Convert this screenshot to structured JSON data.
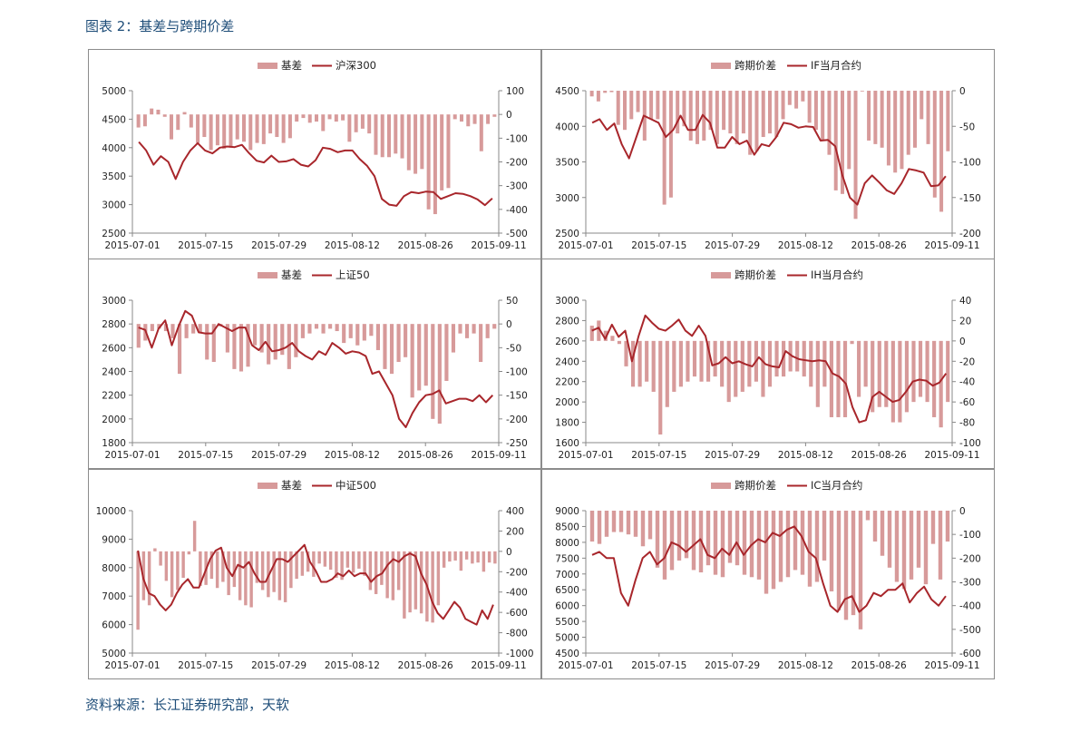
{
  "page": {
    "title": "图表 2：基差与跨期价差",
    "source": "资料来源：长江证券研究部，天软"
  },
  "colors": {
    "bar": "#d79a9a",
    "line": "#a8262b",
    "axis": "#888888"
  },
  "x_ticks": [
    "2015-07-01",
    "2015-07-15",
    "2015-07-29",
    "2015-08-12",
    "2015-08-26",
    "2015-09-11"
  ],
  "chart_data": [
    {
      "type": "bar+line",
      "legend": {
        "bar": "基差",
        "line": "沪深300"
      },
      "y_left": {
        "min": 2500,
        "max": 5000,
        "ticks": [
          2500,
          3000,
          3500,
          4000,
          4500,
          5000
        ]
      },
      "y_right": {
        "min": -500,
        "max": 100,
        "ticks": [
          -500,
          -400,
          -300,
          -200,
          -100,
          0,
          100
        ]
      },
      "bars": [
        -55,
        -50,
        25,
        20,
        -10,
        -105,
        -65,
        10,
        -55,
        -120,
        -95,
        -150,
        -130,
        -145,
        -140,
        -105,
        -115,
        -150,
        -120,
        -125,
        -80,
        -95,
        -120,
        -100,
        -30,
        -15,
        -35,
        -30,
        -70,
        -20,
        -30,
        -25,
        -115,
        -75,
        -60,
        -80,
        -170,
        -180,
        -180,
        -165,
        -185,
        -235,
        -250,
        -230,
        -400,
        -420,
        -320,
        -310,
        -20,
        -30,
        -50,
        -40,
        -155,
        -40,
        -10
      ],
      "line": [
        4100,
        3950,
        3700,
        3850,
        3750,
        3450,
        3750,
        3950,
        4080,
        3950,
        3900,
        4000,
        4020,
        4010,
        4050,
        3900,
        3770,
        3740,
        3860,
        3750,
        3760,
        3800,
        3700,
        3670,
        3780,
        4000,
        3980,
        3920,
        3950,
        3950,
        3800,
        3680,
        3500,
        3100,
        3000,
        2980,
        3150,
        3220,
        3200,
        3230,
        3220,
        3100,
        3150,
        3200,
        3190,
        3150,
        3090,
        2990,
        3110
      ]
    },
    {
      "type": "bar+line",
      "legend": {
        "bar": "跨期价差",
        "line": "IF当月合约"
      },
      "y_left": {
        "min": 2500,
        "max": 4500,
        "ticks": [
          2500,
          3000,
          3500,
          4000,
          4500
        ]
      },
      "y_right": {
        "min": -200,
        "max": 0,
        "ticks": [
          -200,
          -150,
          -100,
          -50,
          0
        ]
      },
      "bars": [
        -8,
        -15,
        -3,
        -2,
        -48,
        -55,
        -40,
        -30,
        -70,
        -40,
        -40,
        -160,
        -150,
        -60,
        -50,
        -70,
        -75,
        -70,
        -55,
        -75,
        -55,
        -60,
        -75,
        -60,
        -90,
        -85,
        -65,
        -60,
        -65,
        -40,
        -20,
        -25,
        -15,
        -45,
        -55,
        -70,
        -90,
        -140,
        -145,
        -110,
        -180,
        -1,
        -70,
        -75,
        -80,
        -105,
        -115,
        -110,
        -90,
        -80,
        -40,
        -75,
        -150,
        -170,
        -85
      ],
      "line": [
        4050,
        4100,
        3950,
        4040,
        3750,
        3550,
        3850,
        4150,
        4100,
        4050,
        3850,
        3950,
        4150,
        3950,
        3950,
        4160,
        4050,
        3700,
        3700,
        3850,
        3750,
        3800,
        3600,
        3750,
        3720,
        3850,
        4050,
        4030,
        3980,
        4000,
        3990,
        3800,
        3810,
        3720,
        3300,
        3000,
        2900,
        3200,
        3310,
        3210,
        3100,
        3050,
        3200,
        3400,
        3380,
        3350,
        3160,
        3170,
        3300
      ]
    },
    {
      "type": "bar+line",
      "legend": {
        "bar": "基差",
        "line": "上证50"
      },
      "y_left": {
        "min": 1800,
        "max": 3000,
        "ticks": [
          1800,
          2000,
          2200,
          2400,
          2600,
          2800,
          3000
        ]
      },
      "y_right": {
        "min": -250,
        "max": 50,
        "ticks": [
          -250,
          -200,
          -150,
          -100,
          -50,
          0,
          50
        ]
      },
      "bars": [
        -50,
        -35,
        -15,
        -10,
        -15,
        -30,
        -105,
        -30,
        -20,
        -20,
        -75,
        -80,
        -5,
        -60,
        -95,
        -100,
        -90,
        -45,
        -60,
        -85,
        -75,
        -65,
        -95,
        -70,
        -30,
        -20,
        -10,
        -20,
        -10,
        -15,
        -40,
        -30,
        -45,
        -35,
        -25,
        -55,
        -95,
        -105,
        -80,
        -70,
        -155,
        -140,
        -130,
        -200,
        -210,
        -120,
        -60,
        -20,
        -30,
        -20,
        -80,
        -30,
        -10
      ],
      "line": [
        2770,
        2750,
        2600,
        2760,
        2830,
        2620,
        2780,
        2910,
        2870,
        2730,
        2720,
        2720,
        2800,
        2770,
        2740,
        2770,
        2770,
        2620,
        2580,
        2650,
        2570,
        2580,
        2600,
        2640,
        2570,
        2530,
        2500,
        2570,
        2540,
        2640,
        2600,
        2550,
        2570,
        2560,
        2530,
        2380,
        2400,
        2300,
        2200,
        2000,
        1930,
        2050,
        2140,
        2200,
        2210,
        2240,
        2130,
        2150,
        2170,
        2170,
        2150,
        2200,
        2140,
        2200
      ]
    },
    {
      "type": "bar+line",
      "legend": {
        "bar": "跨期价差",
        "line": "IH当月合约"
      },
      "y_left": {
        "min": 1600,
        "max": 3000,
        "ticks": [
          1600,
          1800,
          2000,
          2200,
          2400,
          2600,
          2800,
          3000
        ]
      },
      "y_right": {
        "min": -100,
        "max": 40,
        "ticks": [
          -100,
          -80,
          -60,
          -40,
          -20,
          0,
          20,
          40
        ]
      },
      "bars": [
        15,
        20,
        10,
        5,
        -3,
        -25,
        -45,
        -45,
        -40,
        -50,
        -92,
        -65,
        -50,
        -45,
        -40,
        -35,
        -40,
        -40,
        -35,
        -45,
        -60,
        -55,
        -50,
        -45,
        -40,
        -55,
        -45,
        -35,
        -35,
        -30,
        -30,
        -35,
        -45,
        -65,
        -45,
        -75,
        -75,
        -75,
        -3,
        -55,
        -45,
        -70,
        -65,
        -65,
        -80,
        -80,
        -70,
        -60,
        -55,
        -60,
        -75,
        -85,
        -60
      ],
      "line": [
        2700,
        2730,
        2620,
        2760,
        2640,
        2700,
        2400,
        2650,
        2850,
        2780,
        2720,
        2700,
        2750,
        2810,
        2700,
        2650,
        2750,
        2650,
        2360,
        2380,
        2440,
        2380,
        2400,
        2370,
        2350,
        2440,
        2370,
        2350,
        2340,
        2500,
        2450,
        2420,
        2410,
        2400,
        2410,
        2400,
        2280,
        2250,
        2180,
        1950,
        1800,
        1820,
        2050,
        2100,
        2050,
        2000,
        2020,
        2100,
        2200,
        2220,
        2210,
        2160,
        2190,
        2280
      ]
    },
    {
      "type": "bar+line",
      "legend": {
        "bar": "基差",
        "line": "中证500"
      },
      "y_left": {
        "min": 5000,
        "max": 10000,
        "ticks": [
          5000,
          6000,
          7000,
          8000,
          9000,
          10000
        ]
      },
      "y_right": {
        "min": -1000,
        "max": 400,
        "ticks": [
          -1000,
          -800,
          -600,
          -400,
          -200,
          0,
          200,
          400
        ]
      },
      "bars": [
        -770,
        -480,
        -530,
        30,
        -140,
        -290,
        -450,
        -380,
        -260,
        -30,
        300,
        -340,
        -330,
        -270,
        -360,
        -300,
        -430,
        -350,
        -480,
        -530,
        -550,
        -310,
        -380,
        -450,
        -400,
        -480,
        -500,
        -360,
        -270,
        -240,
        -200,
        -250,
        -120,
        -150,
        -180,
        -260,
        -280,
        -160,
        -210,
        -170,
        -240,
        -380,
        -420,
        -330,
        -460,
        -480,
        -380,
        -660,
        -600,
        -570,
        -610,
        -690,
        -700,
        -530,
        -160,
        -100,
        -90,
        -190,
        -80,
        -120,
        -110,
        -200,
        -110,
        -120
      ],
      "line": [
        8600,
        7600,
        7100,
        7000,
        6700,
        6500,
        6700,
        7100,
        7400,
        7600,
        7300,
        7300,
        7800,
        8300,
        8600,
        8700,
        8000,
        7700,
        8100,
        8000,
        8200,
        7800,
        7500,
        7500,
        7900,
        8300,
        8300,
        8200,
        8400,
        8600,
        8800,
        8200,
        7900,
        7500,
        7500,
        7600,
        7800,
        7700,
        7900,
        7700,
        7800,
        7800,
        7500,
        7700,
        7800,
        8100,
        8300,
        8200,
        8400,
        8500,
        8400,
        7800,
        7400,
        6800,
        6400,
        6200,
        6500,
        6800,
        6600,
        6200,
        6100,
        6000,
        6500,
        6200,
        6700
      ]
    },
    {
      "type": "bar+line",
      "legend": {
        "bar": "跨期价差",
        "line": "IC当月合约"
      },
      "y_left": {
        "min": 4500,
        "max": 9000,
        "ticks": [
          4500,
          5000,
          5500,
          6000,
          6500,
          7000,
          7500,
          8000,
          8500,
          9000
        ]
      },
      "y_right": {
        "min": -600,
        "max": 0,
        "ticks": [
          -600,
          -500,
          -400,
          -300,
          -200,
          -100,
          0
        ]
      },
      "bars": [
        -130,
        -140,
        -110,
        -90,
        -90,
        -100,
        -110,
        -150,
        -120,
        -240,
        -290,
        -250,
        -210,
        -200,
        -250,
        -260,
        -230,
        -270,
        -280,
        -220,
        -230,
        -270,
        -280,
        -290,
        -350,
        -330,
        -300,
        -280,
        -250,
        -270,
        -320,
        -300,
        -210,
        -340,
        -420,
        -460,
        -440,
        -500,
        -40,
        -130,
        -190,
        -240,
        -300,
        -330,
        -290,
        -240,
        -310,
        -140,
        -290,
        -130
      ],
      "line": [
        7600,
        7700,
        7500,
        7500,
        6400,
        6000,
        6800,
        7500,
        7700,
        7300,
        7500,
        8000,
        7900,
        7700,
        7900,
        8100,
        7600,
        7500,
        7800,
        7600,
        8000,
        7600,
        7900,
        8100,
        8000,
        8300,
        8200,
        8400,
        8500,
        8200,
        7700,
        7500,
        6700,
        6000,
        5800,
        6200,
        6300,
        5800,
        6000,
        6400,
        6300,
        6500,
        6500,
        6700,
        6100,
        6400,
        6600,
        6200,
        6000,
        6300
      ]
    }
  ]
}
